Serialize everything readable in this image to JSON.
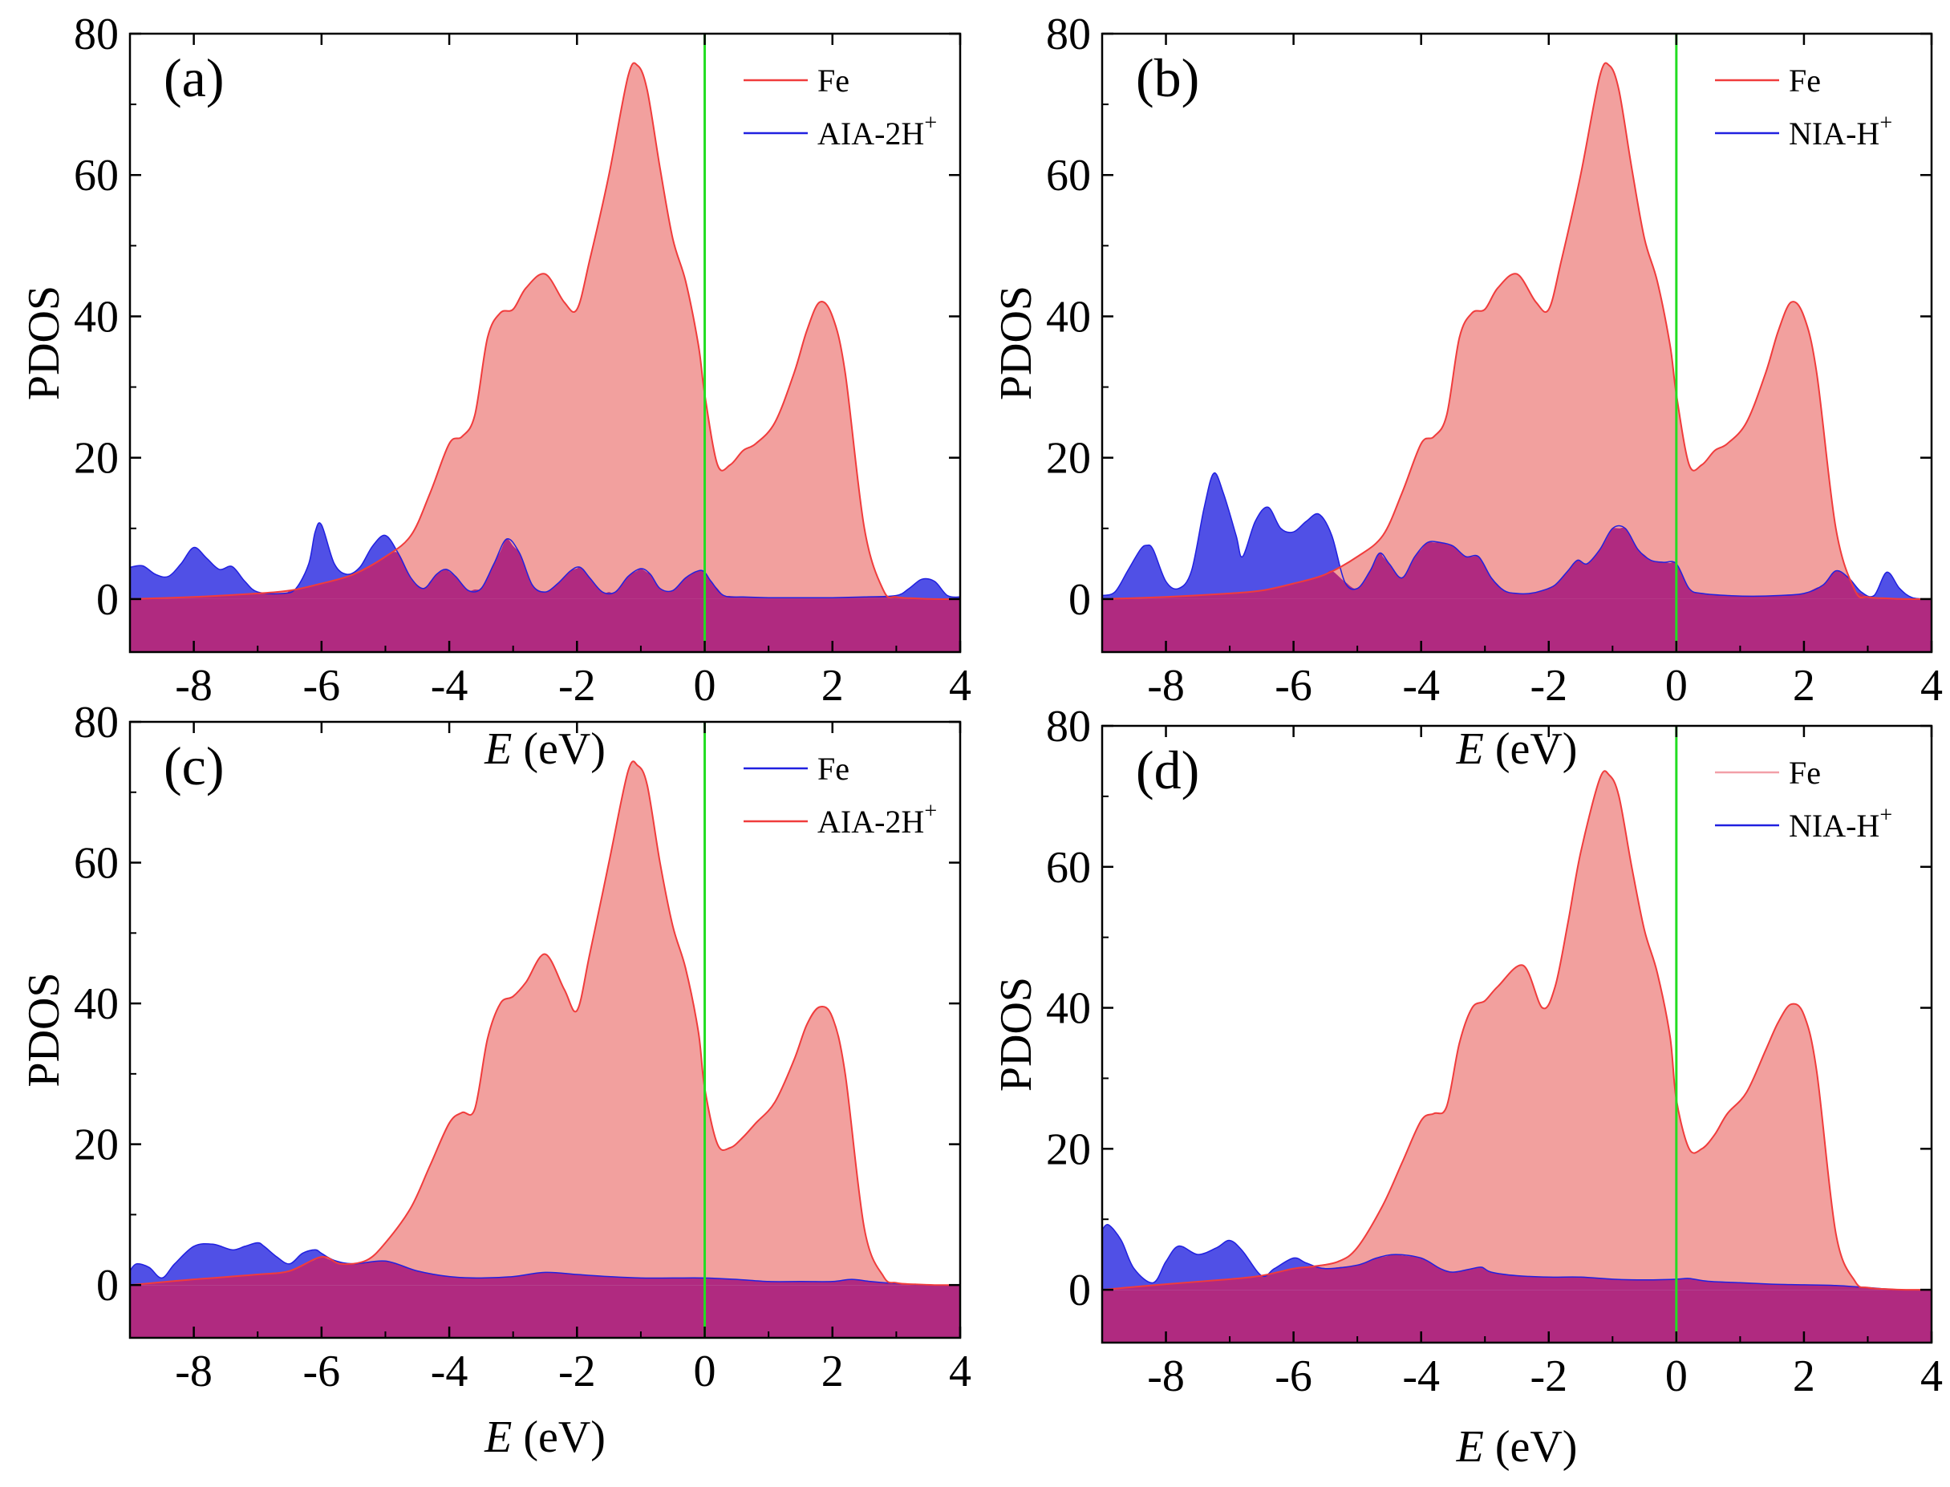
{
  "figure": {
    "colors": {
      "fe_fill": "#f2a09e",
      "fe_line": "#f03c3c",
      "blue_fill": "#5050e6",
      "blue_line": "#2020e0",
      "overlap_fill": "#b02a80",
      "fermi_line": "#22dd22",
      "axis": "#000000"
    }
  },
  "chart_data": [
    {
      "type": "area",
      "panel_label": "(a)",
      "xlabel": "E (eV)",
      "ylabel": "PDOS",
      "xlim": [
        -9,
        4
      ],
      "ylim": [
        -7.5,
        80
      ],
      "xticks": [
        -8,
        -6,
        -4,
        -2,
        0,
        2,
        4
      ],
      "yticks": [
        0,
        20,
        40,
        60,
        80
      ],
      "fermi_level": 0,
      "legend": {
        "position": "top-right",
        "entries": [
          {
            "label": "Fe",
            "color": "#f03c3c"
          },
          {
            "label": "AIA-2H",
            "sup": "+",
            "color": "#2020e0"
          }
        ]
      },
      "series": [
        {
          "name": "Fe",
          "color": "#f03c3c",
          "x": [
            -9,
            -8,
            -7,
            -6.5,
            -6,
            -5.5,
            -5,
            -4.6,
            -4.3,
            -4.0,
            -3.8,
            -3.6,
            -3.4,
            -3.2,
            -3.0,
            -2.8,
            -2.5,
            -2.2,
            -2.0,
            -1.8,
            -1.5,
            -1.2,
            -1.05,
            -0.9,
            -0.7,
            -0.5,
            -0.3,
            -0.1,
            0.0,
            0.2,
            0.4,
            0.6,
            0.8,
            1.1,
            1.4,
            1.6,
            1.8,
            2.0,
            2.2,
            2.5,
            2.8,
            3.0,
            3.3,
            3.6,
            4.0
          ],
          "y": [
            0,
            0.3,
            0.8,
            1.2,
            2.2,
            3.5,
            6,
            9,
            15,
            22,
            23,
            26,
            37,
            40.5,
            41,
            44,
            46,
            42,
            41,
            48,
            60,
            74,
            75.5,
            72,
            61,
            51,
            45,
            36,
            29,
            19,
            19,
            21,
            22,
            25,
            32,
            38,
            42,
            40,
            32,
            10,
            1.2,
            0.3,
            0.1,
            0,
            0
          ]
        },
        {
          "name": "AIA-2H",
          "sup": "+",
          "color": "#2020e0",
          "x": [
            -9,
            -8.8,
            -8.6,
            -8.4,
            -8.2,
            -8.0,
            -7.8,
            -7.6,
            -7.4,
            -7.2,
            -7.0,
            -6.6,
            -6.4,
            -6.2,
            -6.1,
            -6.0,
            -5.8,
            -5.6,
            -5.4,
            -5.2,
            -5.0,
            -4.8,
            -4.6,
            -4.4,
            -4.2,
            -4.05,
            -3.9,
            -3.7,
            -3.5,
            -3.3,
            -3.1,
            -2.9,
            -2.7,
            -2.5,
            -2.3,
            -2.1,
            -1.95,
            -1.8,
            -1.6,
            -1.4,
            -1.2,
            -1.0,
            -0.85,
            -0.7,
            -0.5,
            -0.3,
            -0.1,
            0.0,
            0.1,
            0.3,
            0.6,
            1.0,
            1.5,
            2.0,
            2.5,
            3.0,
            3.2,
            3.4,
            3.6,
            3.8,
            4.0
          ],
          "y": [
            4.5,
            4.7,
            3.5,
            3.2,
            5,
            7.3,
            5.8,
            4.2,
            4.6,
            2.5,
            1.0,
            0.8,
            1.5,
            5,
            9.5,
            10.5,
            5,
            3.5,
            4.5,
            7.5,
            9,
            6.5,
            3,
            1.5,
            3.5,
            4.2,
            3.2,
            1.2,
            1.5,
            5,
            8.5,
            6.5,
            2,
            1.0,
            2.2,
            4,
            4.5,
            3,
            1.0,
            1.0,
            3.2,
            4.3,
            3.5,
            1.5,
            1.2,
            3,
            4,
            3.8,
            2.5,
            0.5,
            0.3,
            0.2,
            0.2,
            0.2,
            0.3,
            0.5,
            1.5,
            2.8,
            2.5,
            0.5,
            0.3
          ]
        }
      ]
    },
    {
      "type": "area",
      "panel_label": "(b)",
      "xlabel": "E (eV)",
      "ylabel": "PDOS",
      "xlim": [
        -9,
        4
      ],
      "ylim": [
        -7.5,
        80
      ],
      "xticks": [
        -8,
        -6,
        -4,
        -2,
        0,
        2,
        4
      ],
      "yticks": [
        0,
        20,
        40,
        60,
        80
      ],
      "fermi_level": 0,
      "legend": {
        "position": "top-right",
        "entries": [
          {
            "label": "Fe",
            "color": "#f03c3c"
          },
          {
            "label": "NIA-H",
            "sup": "+",
            "color": "#2020e0"
          }
        ]
      },
      "series": [
        {
          "name": "Fe",
          "color": "#f03c3c",
          "x": [
            -9,
            -8,
            -7,
            -6.5,
            -6,
            -5.5,
            -5,
            -4.6,
            -4.3,
            -4.0,
            -3.8,
            -3.6,
            -3.4,
            -3.2,
            -3.0,
            -2.8,
            -2.5,
            -2.2,
            -2.0,
            -1.8,
            -1.5,
            -1.2,
            -1.05,
            -0.9,
            -0.7,
            -0.5,
            -0.3,
            -0.1,
            0.0,
            0.2,
            0.4,
            0.6,
            0.8,
            1.1,
            1.4,
            1.6,
            1.8,
            2.0,
            2.2,
            2.5,
            2.8,
            3.0,
            3.3,
            3.6,
            4.0
          ],
          "y": [
            0,
            0.3,
            0.8,
            1.2,
            2.2,
            3.5,
            6,
            9,
            15,
            22,
            23,
            26,
            37,
            40.5,
            41,
            44,
            46,
            42,
            41,
            48,
            60,
            74,
            75.5,
            72,
            61,
            51,
            45,
            36,
            29,
            19,
            19,
            21,
            22,
            25,
            32,
            38,
            42,
            40,
            32,
            10,
            1.2,
            0.3,
            0.1,
            0,
            0
          ]
        },
        {
          "name": "NIA-H",
          "sup": "+",
          "color": "#2020e0",
          "x": [
            -9,
            -8.8,
            -8.6,
            -8.4,
            -8.3,
            -8.2,
            -8.0,
            -7.8,
            -7.6,
            -7.4,
            -7.25,
            -7.1,
            -6.9,
            -6.8,
            -6.6,
            -6.4,
            -6.2,
            -6.0,
            -5.8,
            -5.6,
            -5.4,
            -5.2,
            -5.0,
            -4.8,
            -4.65,
            -4.5,
            -4.3,
            -4.1,
            -3.9,
            -3.7,
            -3.5,
            -3.3,
            -3.1,
            -2.9,
            -2.7,
            -2.5,
            -2.3,
            -2.1,
            -1.9,
            -1.7,
            -1.55,
            -1.4,
            -1.2,
            -1.0,
            -0.8,
            -0.6,
            -0.4,
            -0.2,
            0.0,
            0.2,
            0.4,
            0.8,
            1.2,
            1.6,
            2.0,
            2.3,
            2.5,
            2.7,
            2.9,
            3.1,
            3.3,
            3.5,
            3.7,
            4.0
          ],
          "y": [
            0.5,
            1,
            4,
            7,
            7.6,
            7,
            2.5,
            1.5,
            4,
            13,
            17.8,
            15,
            9,
            6,
            11,
            13,
            10,
            9.5,
            11,
            12,
            9,
            2.5,
            1.5,
            4,
            6.5,
            5,
            3,
            6,
            8,
            8,
            7.5,
            6,
            6,
            3,
            1.2,
            0.8,
            0.8,
            1.2,
            2,
            4,
            5.5,
            5,
            7,
            10,
            10,
            7,
            5.5,
            5.2,
            5,
            1.5,
            0.8,
            0.5,
            0.4,
            0.5,
            0.8,
            2,
            4,
            3,
            1,
            0.5,
            3.8,
            1.5,
            0.2,
            0
          ]
        }
      ]
    },
    {
      "type": "area",
      "panel_label": "(c)",
      "xlabel": "E (eV)",
      "ylabel": "PDOS",
      "xlim": [
        -9,
        4
      ],
      "ylim": [
        -7.5,
        80
      ],
      "xticks": [
        -8,
        -6,
        -4,
        -2,
        0,
        2,
        4
      ],
      "yticks": [
        0,
        20,
        40,
        60,
        80
      ],
      "fermi_level": 0,
      "legend": {
        "position": "top-right",
        "entries": [
          {
            "label": "Fe",
            "color": "#2020e0"
          },
          {
            "label": "AIA-2H",
            "sup": "+",
            "color": "#f03c3c"
          }
        ]
      },
      "series": [
        {
          "name": "Fe",
          "color": "#2020e0",
          "x": [
            -9,
            -8.9,
            -8.7,
            -8.5,
            -8.3,
            -8.0,
            -7.7,
            -7.4,
            -7.2,
            -7.0,
            -6.9,
            -6.7,
            -6.5,
            -6.3,
            -6.1,
            -6.0,
            -5.8,
            -5.5,
            -5.0,
            -4.5,
            -4.0,
            -3.5,
            -3.0,
            -2.5,
            -2.0,
            -1.5,
            -1.0,
            -0.5,
            0.0,
            0.5,
            1.0,
            1.5,
            2.0,
            2.3,
            2.6,
            3.0,
            3.5,
            4.0
          ],
          "y": [
            2,
            3,
            2.5,
            1,
            3,
            5.5,
            5.8,
            5,
            5.5,
            6,
            5.5,
            4,
            3,
            4.5,
            5,
            4.5,
            3.5,
            3,
            3.4,
            2,
            1.2,
            1,
            1.2,
            1.8,
            1.5,
            1.2,
            1,
            1,
            1,
            0.8,
            0.5,
            0.5,
            0.5,
            0.8,
            0.5,
            0.2,
            0,
            0
          ]
        },
        {
          "name": "AIA-2H",
          "sup": "+",
          "color": "#f03c3c",
          "x": [
            -9,
            -8,
            -7,
            -6.5,
            -6.0,
            -5.7,
            -5.3,
            -5.0,
            -4.6,
            -4.3,
            -4.0,
            -3.8,
            -3.6,
            -3.4,
            -3.2,
            -3.0,
            -2.8,
            -2.5,
            -2.2,
            -2.0,
            -1.8,
            -1.5,
            -1.2,
            -1.05,
            -0.9,
            -0.7,
            -0.5,
            -0.3,
            -0.1,
            0.0,
            0.2,
            0.4,
            0.6,
            0.8,
            1.1,
            1.4,
            1.6,
            1.8,
            2.0,
            2.2,
            2.5,
            2.8,
            3.0,
            3.3,
            3.6,
            4.0
          ],
          "y": [
            0,
            0.8,
            1.5,
            2,
            4,
            3,
            3.5,
            6,
            11,
            17,
            23,
            24.5,
            25,
            35,
            40,
            41,
            43,
            47,
            42,
            39,
            47,
            60,
            73,
            73.8,
            71,
            60,
            51,
            45,
            36,
            28,
            20,
            19.5,
            21,
            23,
            26,
            32,
            37,
            39.5,
            38,
            30,
            8,
            1.2,
            0.3,
            0.1,
            0,
            0
          ]
        }
      ]
    },
    {
      "type": "area",
      "panel_label": "(d)",
      "xlabel": "E (eV)",
      "ylabel": "PDOS",
      "xlim": [
        -9,
        4
      ],
      "ylim": [
        -7.5,
        80
      ],
      "xticks": [
        -8,
        -6,
        -4,
        -2,
        0,
        2,
        4
      ],
      "yticks": [
        0,
        20,
        40,
        60,
        80
      ],
      "fermi_level": 0,
      "legend": {
        "position": "top-right",
        "entries": [
          {
            "label": "Fe",
            "color": "#f2a0a8"
          },
          {
            "label": "NIA-H",
            "sup": "+",
            "color": "#2020e0"
          }
        ]
      },
      "series": [
        {
          "name": "Fe",
          "color": "#f03c3c",
          "x": [
            -9,
            -8,
            -7,
            -6.5,
            -6.0,
            -5.7,
            -5.3,
            -5.0,
            -4.6,
            -4.3,
            -4.0,
            -3.8,
            -3.6,
            -3.4,
            -3.2,
            -3.0,
            -2.8,
            -2.4,
            -2.1,
            -1.9,
            -1.7,
            -1.5,
            -1.2,
            -1.05,
            -0.9,
            -0.7,
            -0.5,
            -0.3,
            -0.1,
            0.0,
            0.2,
            0.4,
            0.6,
            0.8,
            1.1,
            1.4,
            1.6,
            1.8,
            2.0,
            2.2,
            2.5,
            2.8,
            3.0,
            3.3,
            3.6,
            4.0
          ],
          "y": [
            0,
            0.8,
            1.5,
            2,
            3,
            3.3,
            4,
            6,
            12,
            18,
            24,
            25,
            26,
            35,
            40,
            41,
            43,
            46,
            40,
            43,
            52,
            62,
            72.5,
            73,
            70,
            60,
            51,
            45,
            36,
            27,
            20,
            20,
            22,
            25,
            28,
            34,
            38,
            40.5,
            39,
            31,
            8,
            1.2,
            0.3,
            0.1,
            0,
            0
          ]
        },
        {
          "name": "NIA-H",
          "sup": "+",
          "color": "#2020e0",
          "x": [
            -9,
            -8.9,
            -8.7,
            -8.5,
            -8.2,
            -8.0,
            -7.8,
            -7.5,
            -7.2,
            -7.0,
            -6.8,
            -6.5,
            -6.3,
            -6.0,
            -5.8,
            -5.5,
            -5.0,
            -4.7,
            -4.4,
            -4.0,
            -3.7,
            -3.5,
            -3.2,
            -3.05,
            -2.9,
            -2.5,
            -2.0,
            -1.5,
            -1.0,
            -0.5,
            0.0,
            0.2,
            0.5,
            1.0,
            1.5,
            2.0,
            2.5,
            3.0,
            3.5,
            4.0
          ],
          "y": [
            8.5,
            9.2,
            7,
            3,
            1,
            4,
            6.2,
            5,
            6,
            7,
            5.5,
            2,
            3,
            4.5,
            3.8,
            3,
            3.5,
            4.5,
            5,
            4.5,
            3,
            2.5,
            3,
            3.2,
            2.5,
            2,
            1.8,
            1.8,
            1.5,
            1.4,
            1.5,
            1.6,
            1.2,
            1,
            0.8,
            0.7,
            0.6,
            0.3,
            0,
            0
          ]
        }
      ]
    }
  ]
}
